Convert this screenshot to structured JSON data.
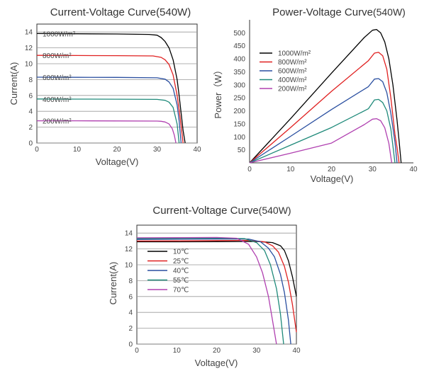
{
  "chart_data": [
    {
      "type": "line",
      "title": "Current-Voltage Curve(540W)",
      "xlabel": "Voltage(V)",
      "ylabel": "Current(A)",
      "xlim": [
        0,
        40
      ],
      "ylim": [
        0,
        15
      ],
      "x_ticks": [
        "0",
        "10",
        "20",
        "30",
        "40"
      ],
      "y_ticks": [
        "0",
        "2",
        "4",
        "6",
        "8",
        "10",
        "12",
        "14"
      ],
      "grid": "horizontal",
      "series": [
        {
          "name": "1000W/m²",
          "color": "#000000",
          "x": [
            0,
            10,
            20,
            28,
            30,
            31,
            32,
            33,
            34,
            35,
            35.5,
            36,
            36.5,
            37
          ],
          "y": [
            13.8,
            13.78,
            13.75,
            13.7,
            13.6,
            13.3,
            12.8,
            12.0,
            10.5,
            8.0,
            6.0,
            3.8,
            1.6,
            0
          ]
        },
        {
          "name": "800W/m²",
          "color": "#e02020",
          "x": [
            0,
            10,
            20,
            29,
            31,
            32,
            33,
            34,
            35,
            35.5,
            36,
            36.5
          ],
          "y": [
            11.05,
            11.04,
            11.02,
            10.98,
            10.8,
            10.5,
            9.9,
            8.6,
            6.0,
            4.2,
            2.2,
            0
          ]
        },
        {
          "name": "600W/m²",
          "color": "#2a4fa0",
          "x": [
            0,
            10,
            20,
            30,
            32,
            33,
            34,
            35,
            35.5,
            36
          ],
          "y": [
            8.3,
            8.29,
            8.28,
            8.22,
            8.05,
            7.7,
            6.9,
            4.8,
            2.8,
            0
          ]
        },
        {
          "name": "400W/m²",
          "color": "#1f8a7a",
          "x": [
            0,
            10,
            20,
            30,
            32,
            33,
            34,
            35,
            35.5
          ],
          "y": [
            5.55,
            5.54,
            5.53,
            5.5,
            5.38,
            5.15,
            4.5,
            2.4,
            0
          ]
        },
        {
          "name": "200W/m²",
          "color": "#b040b0",
          "x": [
            0,
            10,
            20,
            30,
            31,
            32,
            33,
            33.8,
            34.3,
            34.7
          ],
          "y": [
            2.8,
            2.8,
            2.79,
            2.77,
            2.74,
            2.65,
            2.4,
            1.8,
            1.0,
            0
          ]
        }
      ]
    },
    {
      "type": "line",
      "title": "Power-Voltage Curve",
      "title_suffix": "(540W)",
      "xlabel": "Voltage(V)",
      "ylabel": "Power（W）",
      "xlim": [
        0,
        40
      ],
      "ylim": [
        0,
        550
      ],
      "x_ticks": [
        "0",
        "10",
        "20",
        "30",
        "40"
      ],
      "y_ticks": [
        "50",
        "100",
        "150",
        "200",
        "250",
        "300",
        "350",
        "400",
        "450",
        "500"
      ],
      "grid": "none",
      "series": [
        {
          "name": "1000W/m²",
          "color": "#000000",
          "x": [
            0,
            10,
            20,
            28,
            30,
            31,
            32,
            33,
            34,
            35,
            36,
            36.5,
            37
          ],
          "y": [
            0,
            170,
            345,
            482,
            510,
            513,
            500,
            465,
            400,
            300,
            165,
            85,
            0
          ]
        },
        {
          "name": "800W/m²",
          "color": "#e02020",
          "x": [
            0,
            10,
            20,
            29,
            30.5,
            31.5,
            32.5,
            33.5,
            34.5,
            35.5,
            36,
            36.5
          ],
          "y": [
            0,
            136,
            275,
            393,
            422,
            425,
            412,
            360,
            250,
            110,
            60,
            0
          ]
        },
        {
          "name": "600W/m²",
          "color": "#2a4fa0",
          "x": [
            0,
            10,
            20,
            29,
            30.5,
            31.5,
            32.5,
            33.5,
            34.5,
            35.5,
            36
          ],
          "y": [
            0,
            102,
            205,
            293,
            322,
            324,
            312,
            270,
            190,
            80,
            0
          ]
        },
        {
          "name": "400W/m²",
          "color": "#1f8a7a",
          "x": [
            0,
            10,
            20,
            29,
            30.5,
            31.5,
            32.5,
            33.5,
            34.5,
            35.5
          ],
          "y": [
            0,
            68,
            136,
            208,
            242,
            244,
            232,
            200,
            130,
            0
          ]
        },
        {
          "name": "200W/m²",
          "color": "#b040b0",
          "x": [
            0,
            10,
            20,
            28,
            30,
            31,
            32,
            33,
            34,
            34.7
          ],
          "y": [
            0,
            37,
            76,
            147,
            168,
            170,
            162,
            135,
            75,
            0
          ]
        }
      ]
    },
    {
      "type": "line",
      "title": "Current-Voltage Curve",
      "title_suffix": "(540W)",
      "xlabel": "Voltage(V)",
      "ylabel": "Current(A)",
      "xlim": [
        0,
        40
      ],
      "ylim": [
        0,
        15
      ],
      "x_ticks": [
        "0",
        "10",
        "20",
        "30",
        "40"
      ],
      "y_ticks": [
        "0",
        "2",
        "4",
        "6",
        "8",
        "10",
        "12",
        "14"
      ],
      "grid": "horizontal",
      "series": [
        {
          "name": "10℃",
          "color": "#000000",
          "x": [
            0,
            10,
            20,
            30,
            34,
            36,
            37,
            38,
            39,
            40
          ],
          "y": [
            12.9,
            12.9,
            12.92,
            12.95,
            12.8,
            12.4,
            11.8,
            10.5,
            8.5,
            6.0
          ]
        },
        {
          "name": "25℃",
          "color": "#e02020",
          "x": [
            0,
            10,
            20,
            28,
            32,
            34,
            35.5,
            37,
            38,
            39,
            40
          ],
          "y": [
            13.0,
            13.02,
            13.05,
            13.08,
            12.9,
            12.4,
            11.6,
            9.8,
            7.8,
            5.0,
            1.5
          ]
        },
        {
          "name": "40℃",
          "color": "#2a4fa0",
          "x": [
            0,
            10,
            20,
            28,
            31,
            33,
            34.5,
            36,
            37,
            38,
            38.6
          ],
          "y": [
            13.2,
            13.22,
            13.25,
            13.25,
            12.9,
            12.1,
            11.0,
            8.8,
            6.5,
            3.0,
            0
          ]
        },
        {
          "name": "55℃",
          "color": "#1f8a7a",
          "x": [
            0,
            10,
            20,
            27,
            30,
            32,
            33.5,
            35,
            36,
            36.8
          ],
          "y": [
            13.3,
            13.32,
            13.35,
            13.3,
            12.8,
            11.8,
            10.0,
            7.0,
            3.8,
            0
          ]
        },
        {
          "name": "70℃",
          "color": "#b040b0",
          "x": [
            0,
            10,
            20,
            25,
            28,
            30,
            31.5,
            33,
            34,
            35
          ],
          "y": [
            13.4,
            13.42,
            13.45,
            13.35,
            12.6,
            11.0,
            9.0,
            6.0,
            3.0,
            0
          ]
        }
      ]
    }
  ]
}
